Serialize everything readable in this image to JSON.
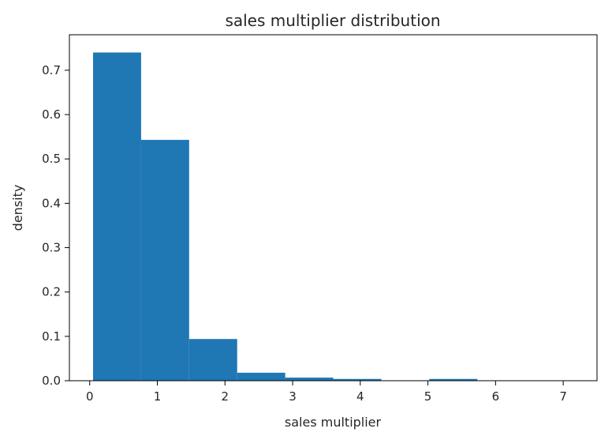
{
  "chart_data": {
    "type": "histogram",
    "title": "sales multiplier distribution",
    "xlabel": "sales multiplier",
    "ylabel": "density",
    "xlim": [
      -0.3,
      7.5
    ],
    "ylim": [
      0,
      0.78
    ],
    "xticks": [
      0,
      1,
      2,
      3,
      4,
      5,
      6,
      7
    ],
    "xtick_labels": [
      "0",
      "1",
      "2",
      "3",
      "4",
      "5",
      "6",
      "7"
    ],
    "yticks": [
      0.0,
      0.1,
      0.2,
      0.3,
      0.4,
      0.5,
      0.6,
      0.7
    ],
    "ytick_labels": [
      "0.0",
      "0.1",
      "0.2",
      "0.3",
      "0.4",
      "0.5",
      "0.6",
      "0.7"
    ],
    "grid": false,
    "bar_color": "#1f77b4",
    "bins": [
      {
        "x0": 0.05,
        "x1": 0.76,
        "value": 0.74
      },
      {
        "x0": 0.76,
        "x1": 1.47,
        "value": 0.543
      },
      {
        "x0": 1.47,
        "x1": 2.18,
        "value": 0.094
      },
      {
        "x0": 2.18,
        "x1": 2.89,
        "value": 0.018
      },
      {
        "x0": 2.89,
        "x1": 3.6,
        "value": 0.007
      },
      {
        "x0": 3.6,
        "x1": 4.31,
        "value": 0.004
      },
      {
        "x0": 4.31,
        "x1": 5.02,
        "value": 0.0008
      },
      {
        "x0": 5.02,
        "x1": 5.73,
        "value": 0.004
      },
      {
        "x0": 5.73,
        "x1": 6.44,
        "value": 0.0006
      },
      {
        "x0": 6.44,
        "x1": 7.15,
        "value": 0.0006
      }
    ]
  }
}
